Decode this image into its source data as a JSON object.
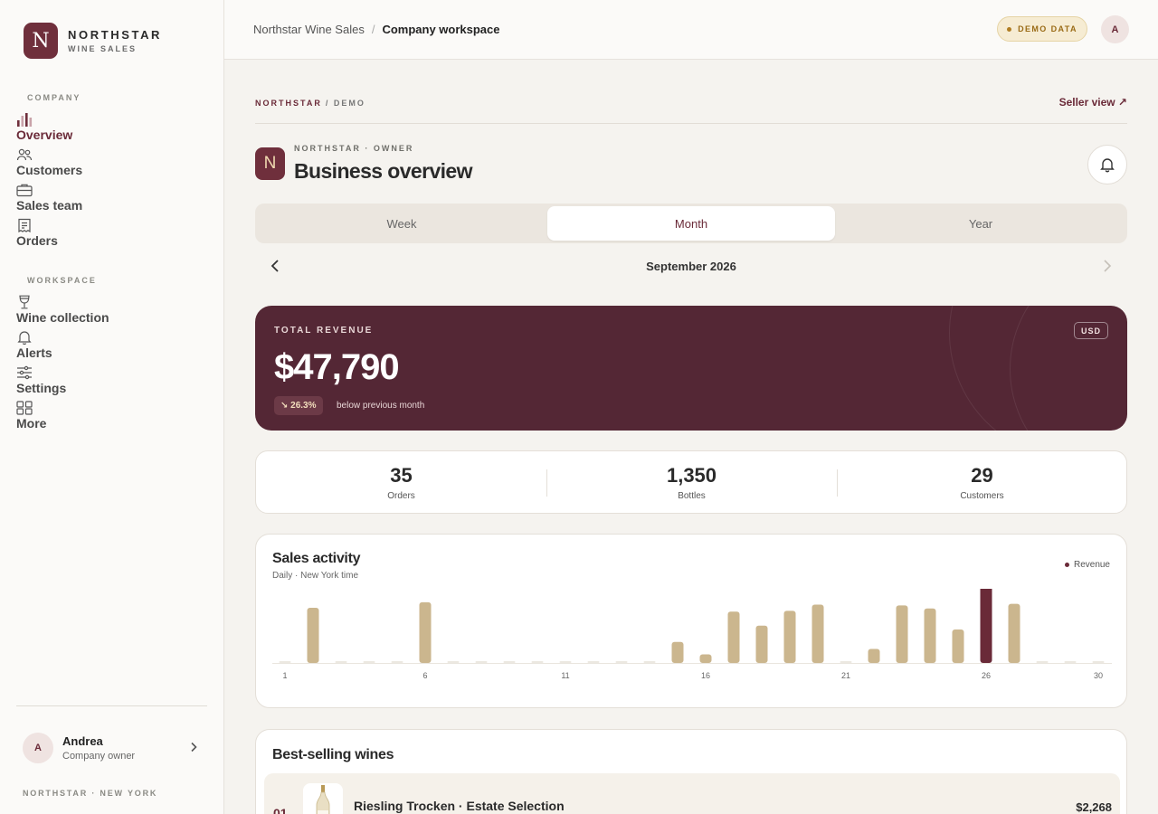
{
  "brand": {
    "initial": "N",
    "name": "NORTHSTAR",
    "sub": "WINE SALES"
  },
  "sidebar": {
    "company_label": "COMPANY",
    "company_items": [
      {
        "label": "Overview",
        "icon": "bar-chart-icon",
        "active": true
      },
      {
        "label": "Customers",
        "icon": "users-icon"
      },
      {
        "label": "Sales team",
        "icon": "briefcase-icon"
      },
      {
        "label": "Orders",
        "icon": "receipt-icon"
      }
    ],
    "workspace_label": "WORKSPACE",
    "workspace_items": [
      {
        "label": "Wine collection",
        "icon": "wine-glass-icon"
      },
      {
        "label": "Alerts",
        "icon": "bell-icon"
      },
      {
        "label": "Settings",
        "icon": "sliders-icon"
      },
      {
        "label": "More",
        "icon": "grid-icon"
      }
    ],
    "user": {
      "initial": "A",
      "name": "Andrea",
      "role": "Company owner"
    },
    "footer": "NORTHSTAR · NEW YORK"
  },
  "topbar": {
    "breadcrumb_root": "Northstar Wine Sales",
    "breadcrumb_sep": "/",
    "breadcrumb_current": "Company workspace",
    "demo_badge": "DEMO DATA",
    "avatar_initial": "A"
  },
  "page": {
    "eyebrow_brand": "NORTHSTAR",
    "eyebrow_rest": "/ DEMO",
    "seller_link": "Seller view ↗",
    "logo_initial": "N",
    "kicker": "NORTHSTAR · OWNER",
    "title": "Business overview"
  },
  "period_tabs": [
    {
      "label": "Week"
    },
    {
      "label": "Month",
      "active": true
    },
    {
      "label": "Year"
    }
  ],
  "period": {
    "label": "September 2026"
  },
  "revenue": {
    "label": "TOTAL REVENUE",
    "value": "$47,790",
    "delta": "↘ 26.3%",
    "delta_note": "below previous month",
    "currency": "USD"
  },
  "stats": [
    {
      "value": "35",
      "label": "Orders"
    },
    {
      "value": "1,350",
      "label": "Bottles"
    },
    {
      "value": "29",
      "label": "Customers"
    }
  ],
  "activity": {
    "title": "Sales activity",
    "subtitle": "Daily · New York time",
    "legend": "Revenue"
  },
  "chart_data": {
    "type": "bar",
    "title": "Sales activity",
    "subtitle": "Daily · New York time",
    "xlabel": "",
    "ylabel": "",
    "legend": [
      "Revenue"
    ],
    "legend_position": "top-right",
    "x": [
      1,
      2,
      3,
      4,
      5,
      6,
      7,
      8,
      9,
      10,
      11,
      12,
      13,
      14,
      15,
      16,
      17,
      18,
      19,
      20,
      21,
      22,
      23,
      24,
      25,
      26,
      27,
      28,
      29,
      30
    ],
    "tick_labels": [
      "1",
      "6",
      "11",
      "16",
      "21",
      "26",
      "30"
    ],
    "values": [
      0,
      71,
      0,
      0,
      0,
      78,
      0,
      0,
      0,
      0,
      0,
      0,
      0,
      0,
      27,
      11,
      66,
      48,
      67,
      75,
      0,
      18,
      74,
      70,
      43,
      100,
      76,
      0,
      0,
      0
    ],
    "highlight_day": 26,
    "colors": {
      "bar": "#cbb68e",
      "highlight": "#6a2a38",
      "empty": "#ece8e1"
    },
    "ylim": [
      0,
      100
    ],
    "grid": false
  },
  "best_selling": {
    "title": "Best-selling wines",
    "items": [
      {
        "rank": "01",
        "name": "Riesling Trocken · Estate Selection",
        "amount": "$2,268"
      }
    ]
  }
}
